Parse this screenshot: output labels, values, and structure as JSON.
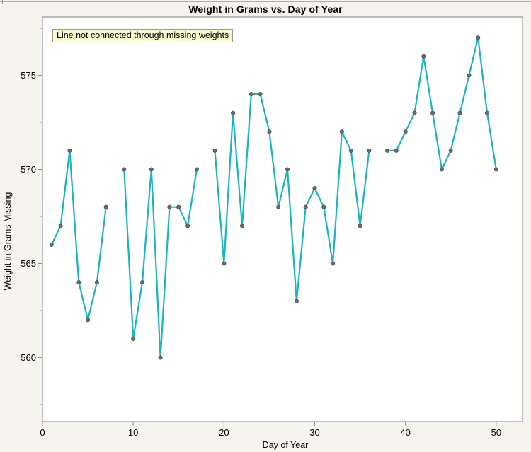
{
  "page": {
    "title": "Weight in Grams vs. Day of Year",
    "annotation": "Line not connected through missing weights",
    "colors": {
      "background": "#f5f4ee",
      "plot_background": "#ffffff",
      "plot_border": "#a3a2a0",
      "line": "#17b4c1",
      "marker_fill": "#6d6d6d",
      "marker_stroke": "#515151",
      "tick": "#8f8f8d",
      "tick_label": "#000000",
      "annotation_bg": "#fcfacf",
      "annotation_border": "#9a998d",
      "top_rule": "#aeada9"
    }
  },
  "chart_data": {
    "type": "line",
    "title": "Weight in Grams vs. Day of Year",
    "xlabel": "Day of Year",
    "ylabel": "Weight in Grams Missing",
    "annotation": "Line not connected through missing weights",
    "grid": false,
    "legend_position": "none",
    "xlim": [
      0,
      52.9
    ],
    "ylim": [
      556.6,
      578.1
    ],
    "xticks": [
      0,
      10,
      20,
      30,
      40,
      50
    ],
    "yticks": [
      560,
      565,
      570,
      575
    ],
    "yticks_minor": [
      557.5,
      562.5,
      567.5,
      572.5,
      577.5
    ],
    "missing_days": [
      8,
      18,
      37
    ],
    "x": [
      1,
      2,
      3,
      4,
      5,
      6,
      7,
      8,
      9,
      10,
      11,
      12,
      13,
      14,
      15,
      16,
      17,
      18,
      19,
      20,
      21,
      22,
      23,
      24,
      25,
      26,
      27,
      28,
      29,
      30,
      31,
      32,
      33,
      34,
      35,
      36,
      37,
      38,
      39,
      40,
      41,
      42,
      43,
      44,
      45,
      46,
      47,
      48,
      49,
      50
    ],
    "y": [
      566,
      567,
      571,
      564,
      562,
      564,
      568,
      null,
      570,
      561,
      564,
      570,
      560,
      568,
      568,
      567,
      570,
      null,
      571,
      565,
      573,
      567,
      574,
      574,
      572,
      568,
      570,
      563,
      568,
      569,
      568,
      565,
      572,
      571,
      567,
      571,
      null,
      571,
      571,
      572,
      573,
      576,
      573,
      570,
      571,
      573,
      575,
      577,
      573,
      570
    ]
  }
}
